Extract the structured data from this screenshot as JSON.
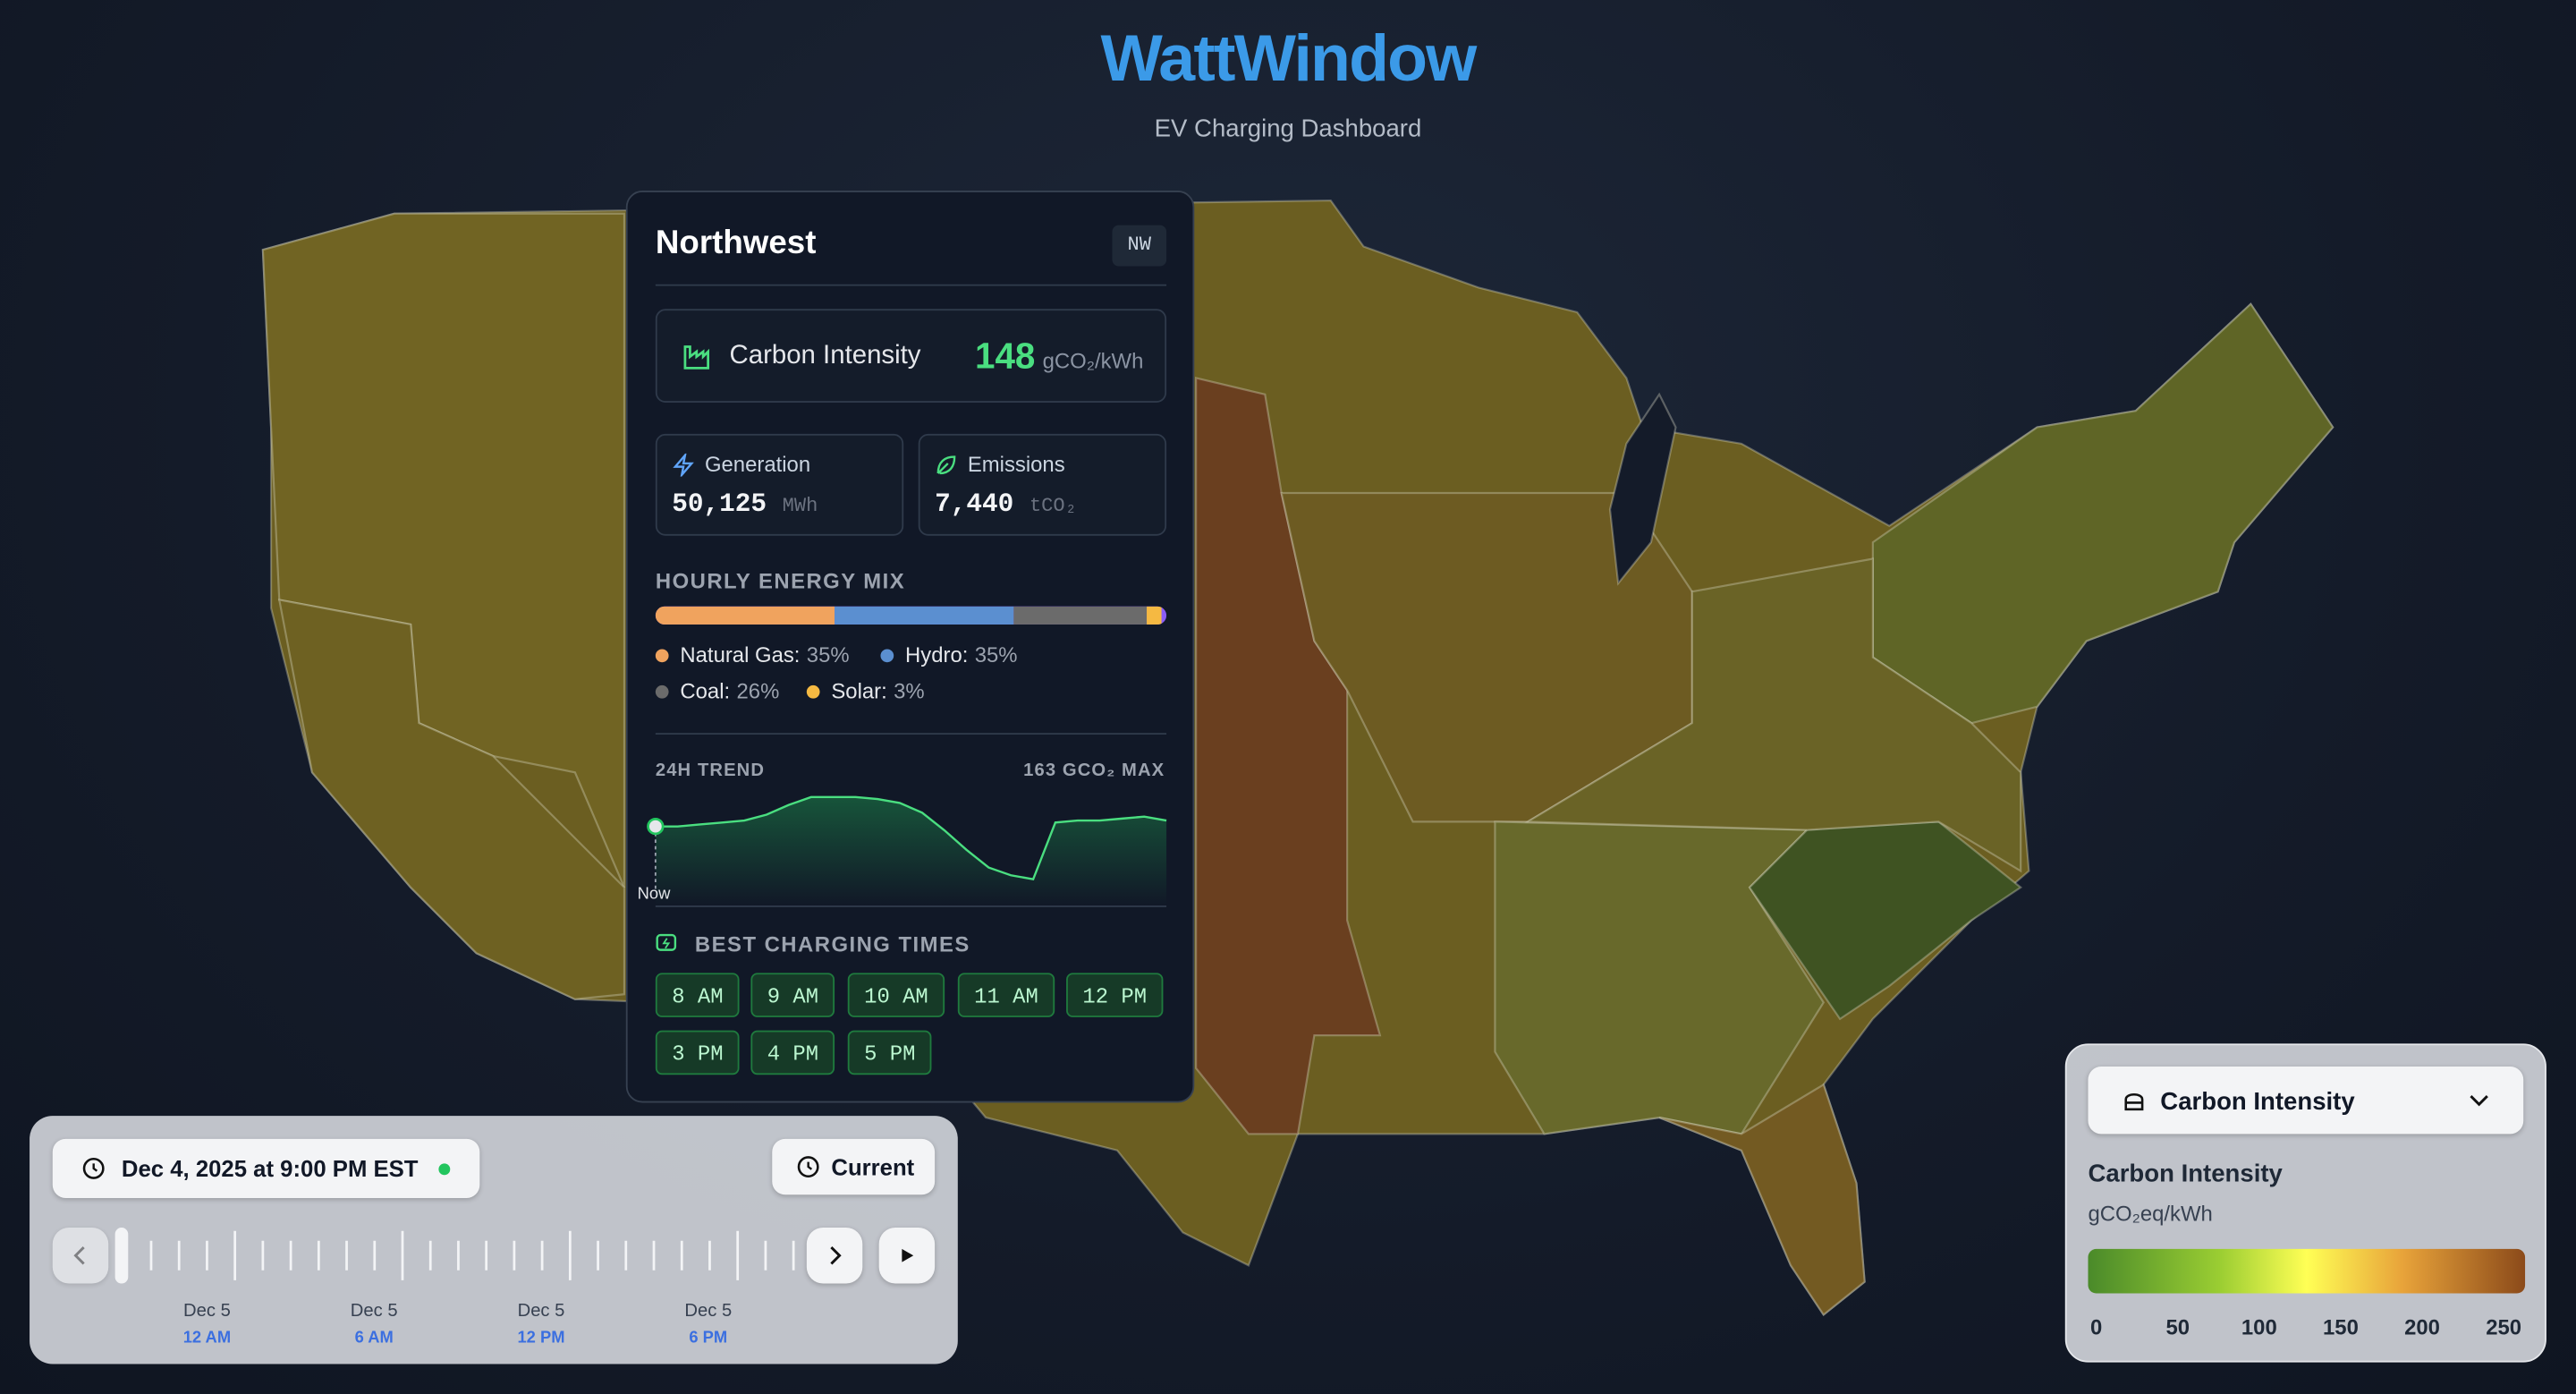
{
  "header": {
    "title": "WattWindow",
    "subtitle": "EV Charging Dashboard"
  },
  "region_panel": {
    "name": "Northwest",
    "code": "NW",
    "carbon_intensity": {
      "label": "Carbon Intensity",
      "value": "148",
      "unit": "gCO₂/kWh"
    },
    "generation": {
      "label": "Generation",
      "value": "50,125",
      "unit": "MWh"
    },
    "emissions": {
      "label": "Emissions",
      "value": "7,440",
      "unit": "tCO₂"
    },
    "energy_mix": {
      "type": "stacked-bar",
      "title": "HOURLY ENERGY MIX",
      "categories": [
        "Natural Gas:",
        "Hydro:",
        "Coal:",
        "Solar:"
      ],
      "values": [
        35,
        35,
        26,
        3
      ],
      "value_labels": [
        "35%",
        "35%",
        "26%",
        "3%"
      ],
      "colors": [
        "#f0a35e",
        "#5b8fd0",
        "#6b6b6b",
        "#f5b942"
      ]
    },
    "trend": {
      "type": "area",
      "title": "24H TREND",
      "max_label": "163 GCO₂ MAX",
      "now_label": "Now",
      "values": [
        148,
        148,
        149,
        150,
        151,
        154,
        159,
        163,
        163,
        163,
        162,
        160,
        155,
        146,
        136,
        127,
        123,
        121,
        150,
        151,
        151,
        152,
        153,
        151
      ]
    },
    "charging": {
      "title": "BEST CHARGING TIMES",
      "times": [
        "8 AM",
        "9 AM",
        "10 AM",
        "11 AM",
        "12 PM",
        "3 PM",
        "4 PM",
        "5 PM"
      ]
    }
  },
  "timeline": {
    "datetime": "Dec 4, 2025 at 9:00 PM EST",
    "current_button": "Current",
    "labels": [
      {
        "date": "Dec 5",
        "time": "12 AM"
      },
      {
        "date": "Dec 5",
        "time": "6 AM"
      },
      {
        "date": "Dec 5",
        "time": "12 PM"
      },
      {
        "date": "Dec 5",
        "time": "6 PM"
      }
    ]
  },
  "legend": {
    "selector": "Carbon Intensity",
    "title": "Carbon Intensity",
    "unit": "gCO₂eq/kWh",
    "lim": [
      0,
      250
    ],
    "ticks": [
      0,
      50,
      100,
      150,
      200,
      250
    ]
  }
}
